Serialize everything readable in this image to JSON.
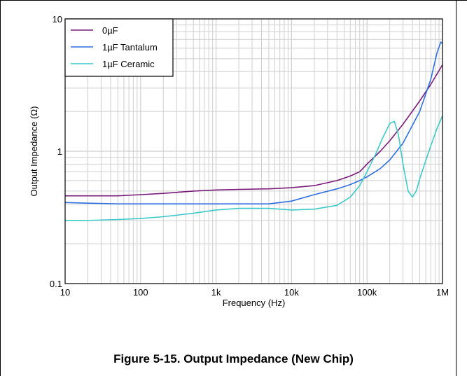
{
  "caption": "Figure 5-15. Output Impedance (New Chip)",
  "colors": {
    "s0": "#7a1a7a",
    "s1": "#2f6fe0",
    "s2": "#3ec9c9",
    "grid": "#cfcfcf",
    "axis": "#000000"
  },
  "chart_data": {
    "type": "line",
    "title": "",
    "xlabel": "Frequency (Hz)",
    "ylabel": "Output Impedance (Ω)",
    "xscale": "log",
    "yscale": "log",
    "xlim": [
      10,
      1000000
    ],
    "ylim": [
      0.1,
      10
    ],
    "grid": true,
    "legend_position": "top-left",
    "x_ticks": [
      {
        "value": 10,
        "label": "10"
      },
      {
        "value": 100,
        "label": "100"
      },
      {
        "value": 1000,
        "label": "1k"
      },
      {
        "value": 10000,
        "label": "10k"
      },
      {
        "value": 100000,
        "label": "100k"
      },
      {
        "value": 1000000,
        "label": "1M"
      }
    ],
    "y_ticks": [
      {
        "value": 0.1,
        "label": "0.1"
      },
      {
        "value": 1,
        "label": "1"
      },
      {
        "value": 10,
        "label": "10"
      }
    ],
    "series": [
      {
        "name": "0µF",
        "color": "#7a1a7a",
        "x": [
          10,
          20,
          50,
          100,
          200,
          500,
          1000,
          2000,
          5000,
          10000,
          20000,
          40000,
          60000,
          80000,
          100000,
          150000,
          200000,
          300000,
          500000,
          700000,
          1000000
        ],
        "y": [
          0.46,
          0.46,
          0.46,
          0.47,
          0.48,
          0.5,
          0.51,
          0.515,
          0.52,
          0.53,
          0.55,
          0.6,
          0.65,
          0.7,
          0.8,
          1.0,
          1.2,
          1.6,
          2.4,
          3.2,
          4.5
        ]
      },
      {
        "name": "1µF Tantalum",
        "color": "#2f6fe0",
        "x": [
          10,
          20,
          50,
          100,
          200,
          500,
          1000,
          2000,
          5000,
          10000,
          20000,
          40000,
          60000,
          80000,
          100000,
          150000,
          200000,
          300000,
          500000,
          700000,
          850000,
          950000,
          1000000
        ],
        "y": [
          0.41,
          0.405,
          0.4,
          0.4,
          0.4,
          0.4,
          0.4,
          0.4,
          0.4,
          0.42,
          0.47,
          0.52,
          0.56,
          0.6,
          0.64,
          0.74,
          0.86,
          1.15,
          2.0,
          3.5,
          5.6,
          6.7,
          6.5
        ]
      },
      {
        "name": "1µF Ceramic",
        "color": "#3ec9c9",
        "x": [
          10,
          20,
          50,
          100,
          200,
          500,
          1000,
          2000,
          5000,
          10000,
          20000,
          40000,
          60000,
          80000,
          100000,
          130000,
          160000,
          200000,
          230000,
          260000,
          300000,
          350000,
          400000,
          450000,
          500000,
          600000,
          700000,
          850000,
          1000000
        ],
        "y": [
          0.3,
          0.3,
          0.305,
          0.31,
          0.32,
          0.34,
          0.36,
          0.37,
          0.37,
          0.36,
          0.365,
          0.39,
          0.45,
          0.55,
          0.7,
          0.95,
          1.25,
          1.62,
          1.68,
          1.35,
          0.8,
          0.5,
          0.45,
          0.5,
          0.62,
          0.85,
          1.1,
          1.5,
          1.85
        ]
      }
    ]
  }
}
